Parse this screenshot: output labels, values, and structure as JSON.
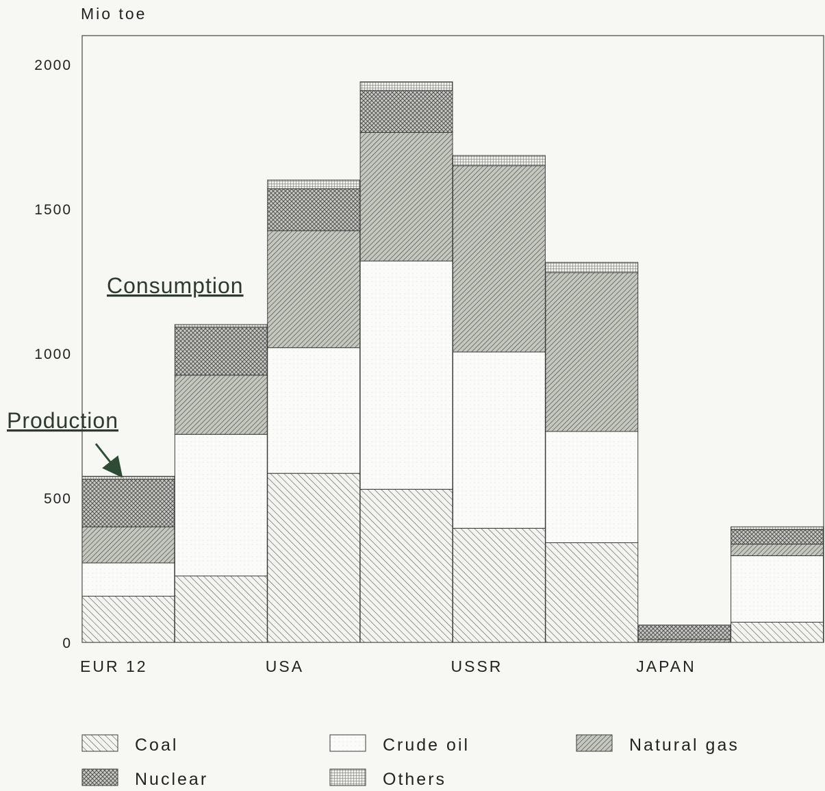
{
  "chart_data": {
    "type": "bar",
    "title": "",
    "ylabel": "Mio toe",
    "ylim": [
      0,
      2100
    ],
    "yticks": [
      0,
      500,
      1000,
      1500,
      2000
    ],
    "categories": [
      "EUR 12",
      "USA",
      "USSR",
      "JAPAN"
    ],
    "bar_roles": [
      "production",
      "consumption"
    ],
    "components": [
      "Coal",
      "Crude oil",
      "Natural gas",
      "Nuclear",
      "Others"
    ],
    "series": [
      {
        "name": "Coal",
        "production": [
          160,
          585,
          395,
          0
        ],
        "consumption": [
          230,
          530,
          345,
          70
        ]
      },
      {
        "name": "Crude oil",
        "production": [
          115,
          435,
          610,
          0
        ],
        "consumption": [
          490,
          790,
          385,
          230
        ]
      },
      {
        "name": "Natural gas",
        "production": [
          125,
          405,
          645,
          10
        ],
        "consumption": [
          205,
          445,
          550,
          40
        ]
      },
      {
        "name": "Nuclear",
        "production": [
          165,
          145,
          0,
          50
        ],
        "consumption": [
          165,
          145,
          0,
          50
        ]
      },
      {
        "name": "Others",
        "production": [
          10,
          30,
          35,
          0
        ],
        "consumption": [
          10,
          30,
          35,
          10
        ]
      }
    ],
    "annotations": [
      "Consumption",
      "Production"
    ],
    "legend_placement": "bottom",
    "grid": false
  },
  "colors": {
    "stroke": "#3a3a3a",
    "gas_fill": "#b9bdb4",
    "nuclear_fill": "#c7c9c3"
  }
}
